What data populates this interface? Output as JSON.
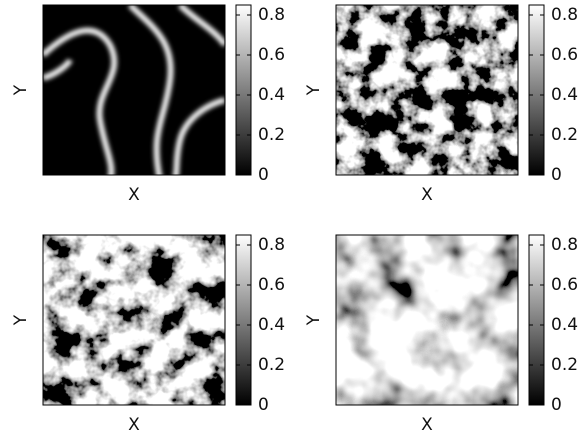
{
  "chart_data": [
    {
      "type": "heatmap",
      "xlabel": "X",
      "ylabel": "Y",
      "zlim": [
        0,
        0.85
      ],
      "zticks": [
        0,
        0.2,
        0.4,
        0.6,
        0.8
      ]
    },
    {
      "type": "heatmap",
      "xlabel": "X",
      "ylabel": "Y",
      "zlim": [
        0,
        0.85
      ],
      "zticks": [
        0,
        0.2,
        0.4,
        0.6,
        0.8
      ]
    },
    {
      "type": "heatmap",
      "xlabel": "X",
      "ylabel": "Y",
      "zlim": [
        0,
        0.85
      ],
      "zticks": [
        0,
        0.2,
        0.4,
        0.6,
        0.8
      ]
    },
    {
      "type": "heatmap",
      "xlabel": "X",
      "ylabel": "Y",
      "zlim": [
        0,
        0.85
      ],
      "zticks": [
        0,
        0.2,
        0.4,
        0.6,
        0.8
      ]
    }
  ]
}
